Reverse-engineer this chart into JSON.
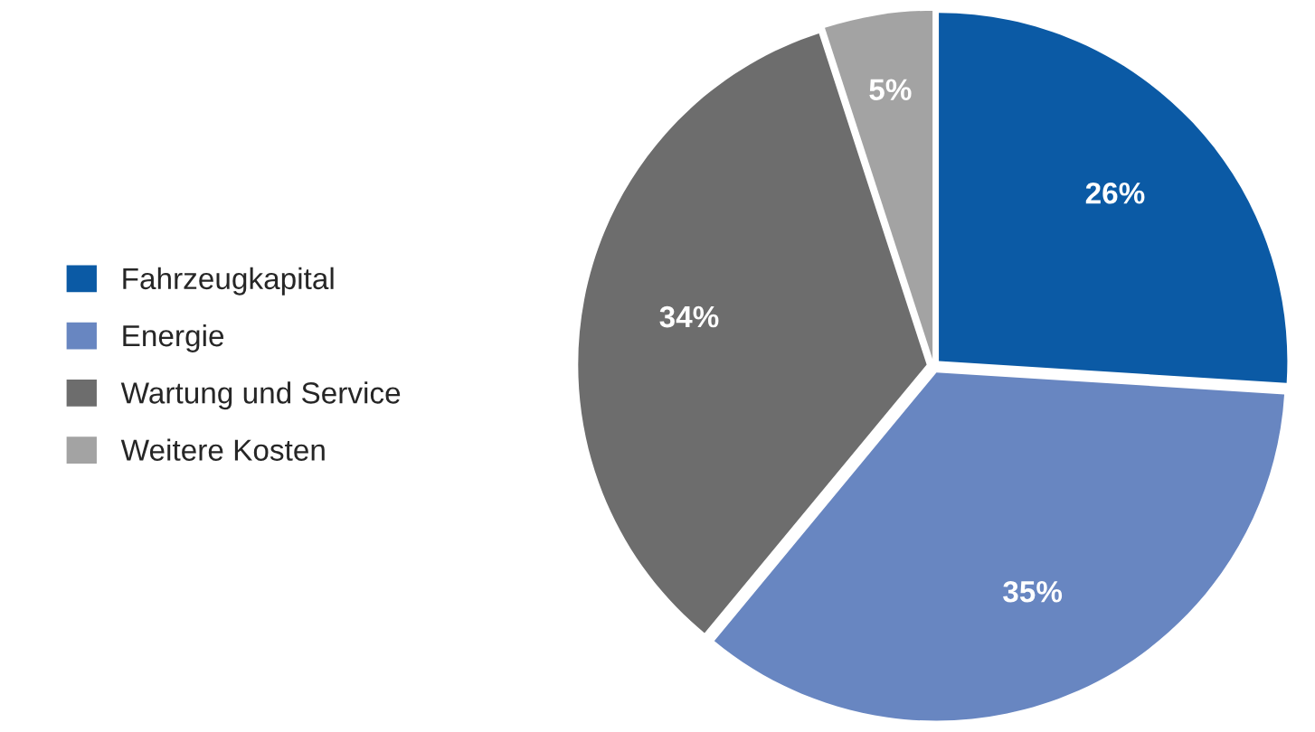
{
  "chart_data": {
    "type": "pie",
    "categories": [
      "Fahrzeugkapital",
      "Energie",
      "Wartung und Service",
      "Weitere Kosten"
    ],
    "values": [
      26,
      35,
      34,
      5
    ],
    "colors": [
      "#0b5aa5",
      "#6886c1",
      "#6d6d6d",
      "#a3a3a3"
    ],
    "value_labels": [
      "26%",
      "35%",
      "34%",
      "5%"
    ],
    "legend": "left"
  }
}
